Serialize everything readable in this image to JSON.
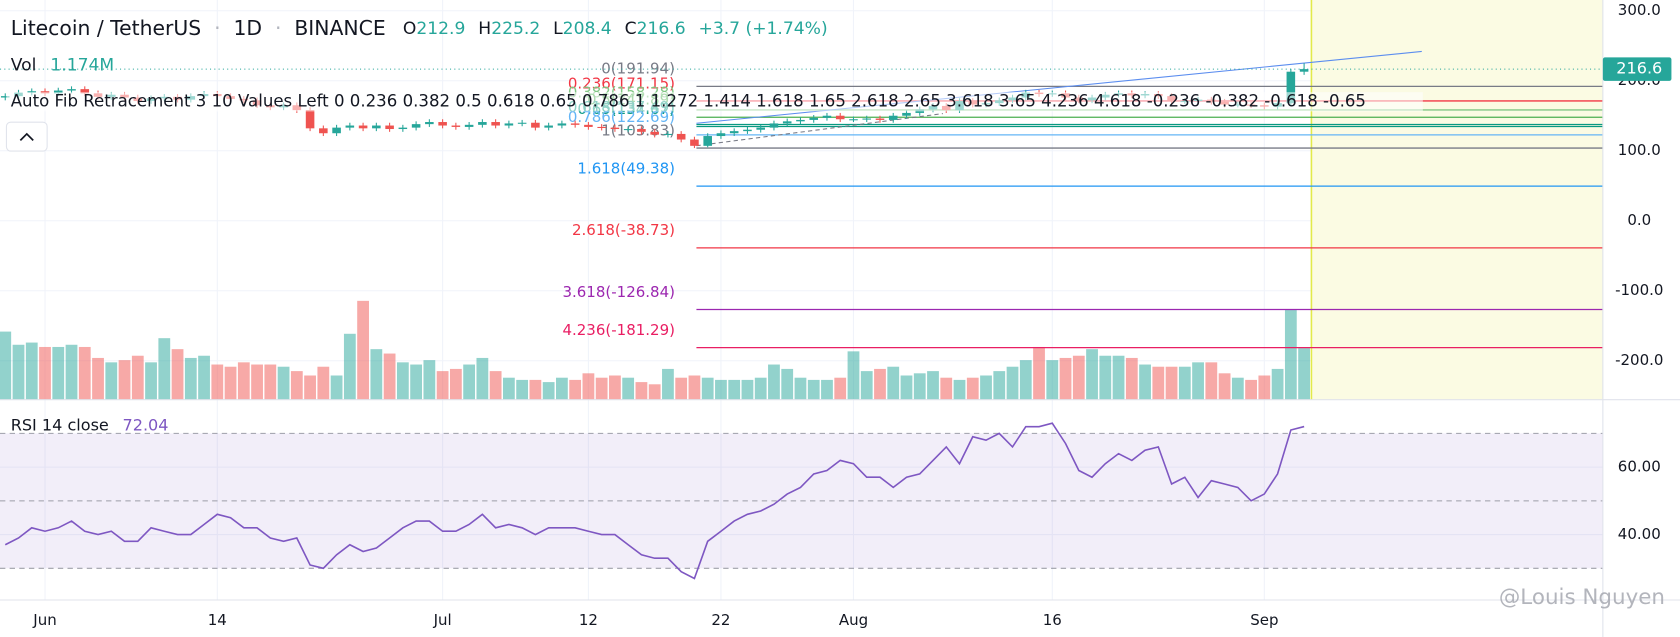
{
  "chart_data": {
    "type": "candlestick",
    "header": {
      "symbol": "Litecoin / TetherUS",
      "interval": "1D",
      "exchange": "BINANCE",
      "ohlc_labels": [
        "O",
        "H",
        "L",
        "C"
      ],
      "change": "+3.7 (+1.74%)"
    },
    "indicator_text": "Auto Fib Retracement 3 10 Values Left 0 0.236 0.382 0.5 0.618 0.65 0.786 1 1.272 1.414 1.618 1.65 2.618 2.65 3.618 3.65 4.236 4.618 -0.236 -0.382 -0.618 -0.65",
    "ylim": [
      -255.6,
      315.3
    ],
    "yticks": [
      {
        "value": 300,
        "label": "300.0"
      },
      {
        "value": 200,
        "label": "200.0"
      },
      {
        "value": 100,
        "label": "100.0"
      },
      {
        "value": 0,
        "label": "0.0"
      },
      {
        "value": -100,
        "label": "-100.0"
      },
      {
        "value": -200,
        "label": "-200.0"
      }
    ],
    "grid": true,
    "candles": {
      "up_color": "#26a69a",
      "down_color": "#ef5350",
      "open": [
        176,
        178,
        183,
        185,
        182,
        186,
        188,
        182,
        177,
        180,
        176,
        171,
        175,
        177,
        173,
        178,
        181,
        178,
        174,
        172,
        165,
        162,
        165,
        158,
        132,
        125,
        133,
        136,
        132,
        136,
        131,
        133,
        138,
        141,
        136,
        134,
        137,
        141,
        136,
        139,
        140,
        133,
        136,
        139,
        137,
        134,
        133,
        131,
        131,
        127,
        123,
        124,
        116,
        107,
        121,
        125,
        128,
        130,
        133,
        139,
        142,
        144,
        147,
        150,
        145,
        145,
        146,
        144,
        150,
        154,
        159,
        164,
        158,
        171,
        166,
        168,
        172,
        176,
        183,
        181,
        182,
        176,
        172,
        176,
        180,
        182,
        179,
        181,
        178,
        171,
        171,
        173,
        170,
        166,
        166,
        165,
        163,
        168,
        212.9
      ],
      "high": [
        182,
        187,
        189,
        189,
        190,
        192,
        192,
        186,
        184,
        184,
        180,
        179,
        181,
        181,
        182,
        185,
        185,
        182,
        178,
        176,
        169,
        169,
        169,
        162,
        136,
        137,
        140,
        140,
        140,
        140,
        137,
        142,
        145,
        145,
        140,
        141,
        145,
        145,
        143,
        144,
        144,
        140,
        143,
        143,
        141,
        138,
        137,
        135,
        135,
        131,
        128,
        128,
        120,
        125,
        129,
        132,
        134,
        137,
        143,
        146,
        148,
        151,
        154,
        154,
        149,
        150,
        150,
        154,
        158,
        163,
        168,
        168,
        175,
        175,
        172,
        176,
        180,
        187,
        187,
        186,
        186,
        180,
        180,
        184,
        186,
        186,
        185,
        185,
        182,
        175,
        177,
        177,
        174,
        170,
        170,
        169,
        172,
        217,
        225.2
      ],
      "low": [
        172,
        174,
        179,
        178,
        178,
        182,
        178,
        173,
        173,
        172,
        167,
        167,
        171,
        169,
        169,
        174,
        174,
        170,
        168,
        161,
        158,
        158,
        154,
        128,
        121,
        121,
        129,
        128,
        128,
        127,
        127,
        129,
        134,
        132,
        130,
        130,
        133,
        132,
        132,
        135,
        129,
        129,
        132,
        133,
        130,
        129,
        127,
        127,
        123,
        119,
        119,
        112,
        103.83,
        105,
        117,
        121,
        124,
        126,
        129,
        135,
        138,
        140,
        143,
        141,
        141,
        141,
        140,
        140,
        146,
        150,
        155,
        154,
        154,
        162,
        162,
        164,
        168,
        172,
        177,
        177,
        172,
        168,
        168,
        172,
        176,
        175,
        175,
        174,
        167,
        167,
        167,
        166,
        162,
        162,
        161,
        159,
        159,
        164,
        208.4
      ],
      "close": [
        178,
        183,
        185,
        182,
        186,
        188,
        182,
        177,
        180,
        176,
        171,
        175,
        177,
        173,
        178,
        181,
        178,
        174,
        172,
        165,
        162,
        165,
        158,
        132,
        125,
        133,
        136,
        132,
        136,
        131,
        133,
        138,
        141,
        136,
        134,
        137,
        141,
        136,
        139,
        140,
        133,
        136,
        139,
        137,
        134,
        133,
        131,
        131,
        127,
        123,
        124,
        116,
        107,
        121,
        125,
        128,
        130,
        133,
        139,
        142,
        144,
        147,
        150,
        145,
        145,
        146,
        144,
        150,
        154,
        159,
        164,
        158,
        171,
        166,
        168,
        172,
        176,
        183,
        181,
        182,
        176,
        172,
        176,
        180,
        182,
        179,
        181,
        178,
        171,
        171,
        173,
        170,
        166,
        166,
        165,
        163,
        168,
        212.9,
        216.6
      ]
    },
    "volume": {
      "name": "Vol",
      "last_label": "1.174M",
      "vlim": [
        0,
        9.1
      ],
      "values": [
        1.55,
        1.25,
        1.3,
        1.2,
        1.2,
        1.25,
        1.2,
        0.95,
        0.85,
        0.9,
        1.0,
        0.85,
        1.4,
        1.15,
        0.95,
        1.0,
        0.8,
        0.75,
        0.85,
        0.8,
        0.8,
        0.75,
        0.65,
        0.55,
        0.75,
        0.55,
        1.5,
        2.25,
        1.15,
        1.05,
        0.85,
        0.8,
        0.9,
        0.65,
        0.7,
        0.8,
        0.95,
        0.65,
        0.5,
        0.45,
        0.45,
        0.4,
        0.5,
        0.45,
        0.6,
        0.5,
        0.55,
        0.5,
        0.4,
        0.35,
        0.7,
        0.5,
        0.55,
        0.5,
        0.45,
        0.45,
        0.45,
        0.5,
        0.8,
        0.7,
        0.5,
        0.45,
        0.45,
        0.5,
        1.1,
        0.65,
        0.7,
        0.75,
        0.55,
        0.6,
        0.65,
        0.5,
        0.45,
        0.5,
        0.55,
        0.65,
        0.75,
        0.9,
        1.2,
        0.9,
        0.95,
        1.0,
        1.15,
        1.0,
        1.0,
        0.95,
        0.8,
        0.75,
        0.75,
        0.75,
        0.85,
        0.85,
        0.6,
        0.5,
        0.45,
        0.55,
        0.7,
        2.05,
        1.174
      ]
    },
    "fib_levels": [
      {
        "label": "0(191.94)",
        "price": 191.94,
        "color": "#787b86"
      },
      {
        "label": "0.236(171.15)",
        "price": 171.15,
        "color": "#f23645"
      },
      {
        "label": "0.382(158.28)",
        "price": 158.28,
        "color": "#81c784"
      },
      {
        "label": "0.5(147.89)",
        "price": 147.89,
        "color": "#4caf50"
      },
      {
        "label": "0.618(137.49)",
        "price": 137.49,
        "color": "#089981"
      },
      {
        "label": "0.65(134.67)",
        "price": 134.67,
        "color": "#089981"
      },
      {
        "label": "0.786(122.69)",
        "price": 122.69,
        "color": "#64b5f6"
      },
      {
        "label": "1(103.83)",
        "price": 103.83,
        "color": "#787b86"
      },
      {
        "label": "1.618(49.38)",
        "price": 49.38,
        "color": "#2196f3"
      },
      {
        "label": "2.618(-38.73)",
        "price": -38.73,
        "color": "#f23645"
      },
      {
        "label": "3.618(-126.84)",
        "price": -126.84,
        "color": "#9c27b0"
      },
      {
        "label": "4.236(-181.29)",
        "price": -181.29,
        "color": "#e91e63"
      }
    ],
    "rsi": {
      "title": "RSI 14 close",
      "color": "#7e57c2",
      "ylim": [
        20.6,
        80
      ],
      "yticks": [
        {
          "value": 60,
          "label": "60.00"
        },
        {
          "value": 40,
          "label": "40.00"
        }
      ],
      "bands": [
        70,
        50,
        30
      ],
      "values": [
        37,
        39,
        42,
        41,
        42,
        44,
        41,
        40,
        41,
        38,
        38,
        42,
        41,
        40,
        40,
        43,
        46,
        45,
        42,
        42,
        39,
        38,
        39,
        31,
        30,
        34,
        37,
        35,
        36,
        39,
        42,
        44,
        44,
        41,
        41,
        43,
        46,
        42,
        43,
        42,
        40,
        42,
        42,
        42,
        41,
        40,
        40,
        37,
        34,
        33,
        33,
        29,
        27,
        38,
        41,
        44,
        46,
        47,
        49,
        52,
        54,
        58,
        59,
        62,
        61,
        57,
        57,
        54,
        57,
        58,
        62,
        66,
        61,
        69,
        68,
        70,
        66,
        72,
        72,
        73,
        67,
        59,
        57,
        61,
        64,
        62,
        65,
        66,
        55,
        57,
        51,
        56,
        55,
        54,
        50,
        52,
        58,
        71,
        72.04
      ]
    },
    "x_labels": [
      {
        "label": "Jun",
        "index": 3
      },
      {
        "label": "14",
        "index": 16
      },
      {
        "label": "Jul",
        "index": 33
      },
      {
        "label": "12",
        "index": 44
      },
      {
        "label": "22",
        "index": 54
      },
      {
        "label": "Aug",
        "index": 64
      },
      {
        "label": "16",
        "index": 79
      },
      {
        "label": "Sep",
        "index": 95
      }
    ],
    "watermark": "@Louis Nguyen"
  }
}
